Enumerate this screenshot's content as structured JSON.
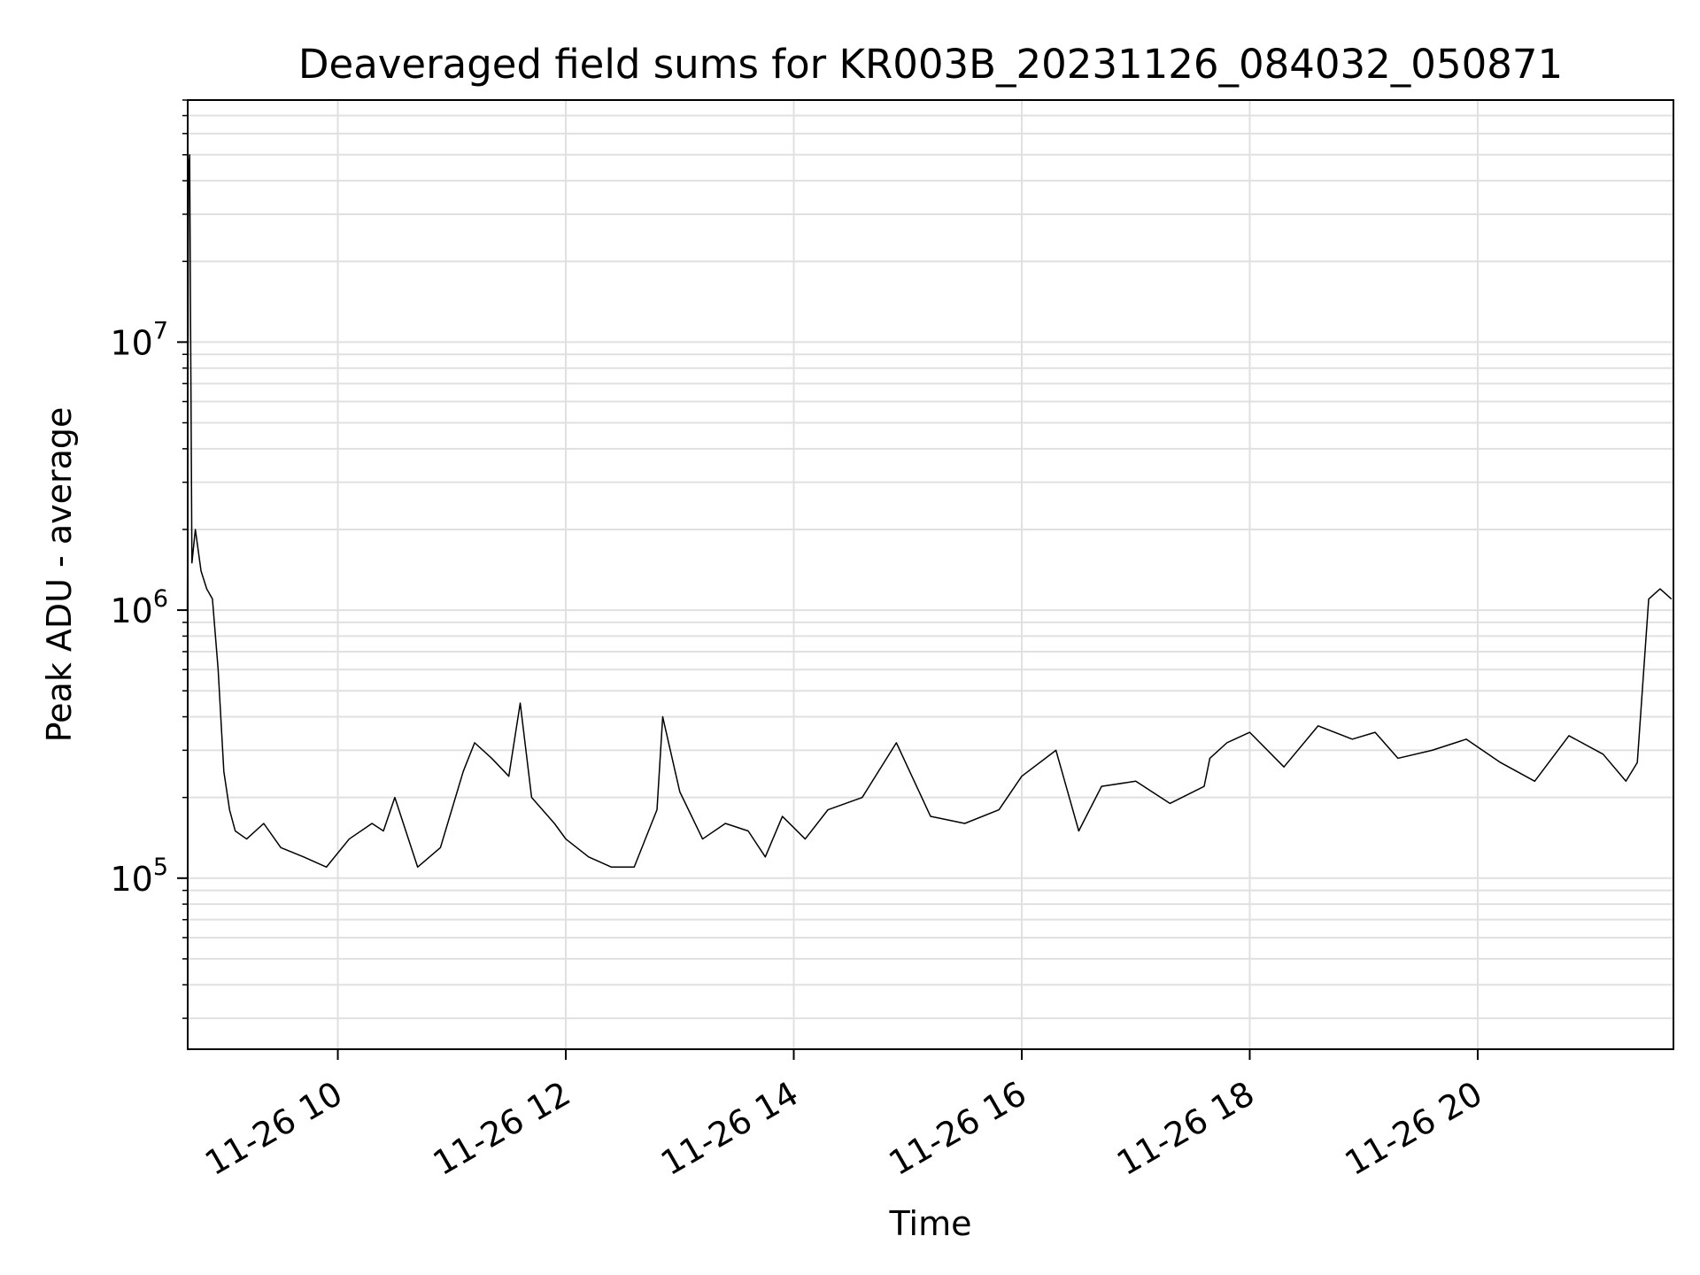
{
  "chart_data": {
    "type": "line",
    "title": "Deaveraged field sums for KR003B_20231126_084032_050871",
    "xlabel": "Time",
    "ylabel": "Peak ADU - average",
    "x_ticks": [
      "11-26 10",
      "11-26 12",
      "11-26 14",
      "11-26 16",
      "11-26 18",
      "11-26 20"
    ],
    "x_tick_hours": [
      10,
      12,
      14,
      16,
      18,
      20
    ],
    "xlim_hours": [
      8.683,
      21.717
    ],
    "y_scale": "log",
    "y_ticks": [
      {
        "value": 100000,
        "base": "10",
        "exp": "5"
      },
      {
        "value": 1000000,
        "base": "10",
        "exp": "6"
      },
      {
        "value": 10000000,
        "base": "10",
        "exp": "7"
      }
    ],
    "ylim": [
      23000,
      80000000
    ],
    "grid": true,
    "line_color": "#000000",
    "grid_color": "#e0e0e0",
    "series": [
      {
        "x_hours": [
          8.68,
          8.69,
          8.7,
          8.72,
          8.75,
          8.8,
          8.85,
          8.9,
          8.95,
          9.0,
          9.05,
          9.1,
          9.2,
          9.35,
          9.5,
          9.7,
          9.9,
          10.1,
          10.3,
          10.4,
          10.5,
          10.7,
          10.9,
          11.1,
          11.2,
          11.35,
          11.5,
          11.6,
          11.7,
          11.9,
          12.0,
          12.2,
          12.4,
          12.6,
          12.8,
          12.85,
          13.0,
          13.2,
          13.4,
          13.6,
          13.75,
          13.9,
          14.1,
          14.3,
          14.6,
          14.9,
          15.2,
          15.5,
          15.8,
          16.0,
          16.3,
          16.5,
          16.7,
          17.0,
          17.3,
          17.6,
          17.65,
          17.8,
          18.0,
          18.3,
          18.6,
          18.9,
          19.1,
          19.3,
          19.6,
          19.9,
          20.2,
          20.5,
          20.8,
          21.1,
          21.3,
          21.4,
          21.5,
          21.6,
          21.7
        ],
        "values": [
          1000000,
          42000000,
          50000000,
          1500000,
          2000000,
          1400000,
          1200000,
          1100000,
          600000,
          250000,
          180000,
          150000,
          140000,
          160000,
          130000,
          120000,
          110000,
          140000,
          160000,
          150000,
          200000,
          110000,
          130000,
          250000,
          320000,
          280000,
          240000,
          450000,
          200000,
          160000,
          140000,
          120000,
          110000,
          110000,
          180000,
          400000,
          210000,
          140000,
          160000,
          150000,
          120000,
          170000,
          140000,
          180000,
          200000,
          320000,
          170000,
          160000,
          180000,
          240000,
          300000,
          150000,
          220000,
          230000,
          190000,
          220000,
          280000,
          320000,
          350000,
          260000,
          370000,
          330000,
          350000,
          280000,
          300000,
          330000,
          270000,
          230000,
          340000,
          290000,
          230000,
          270000,
          1100000,
          1200000,
          1100000
        ]
      }
    ]
  }
}
